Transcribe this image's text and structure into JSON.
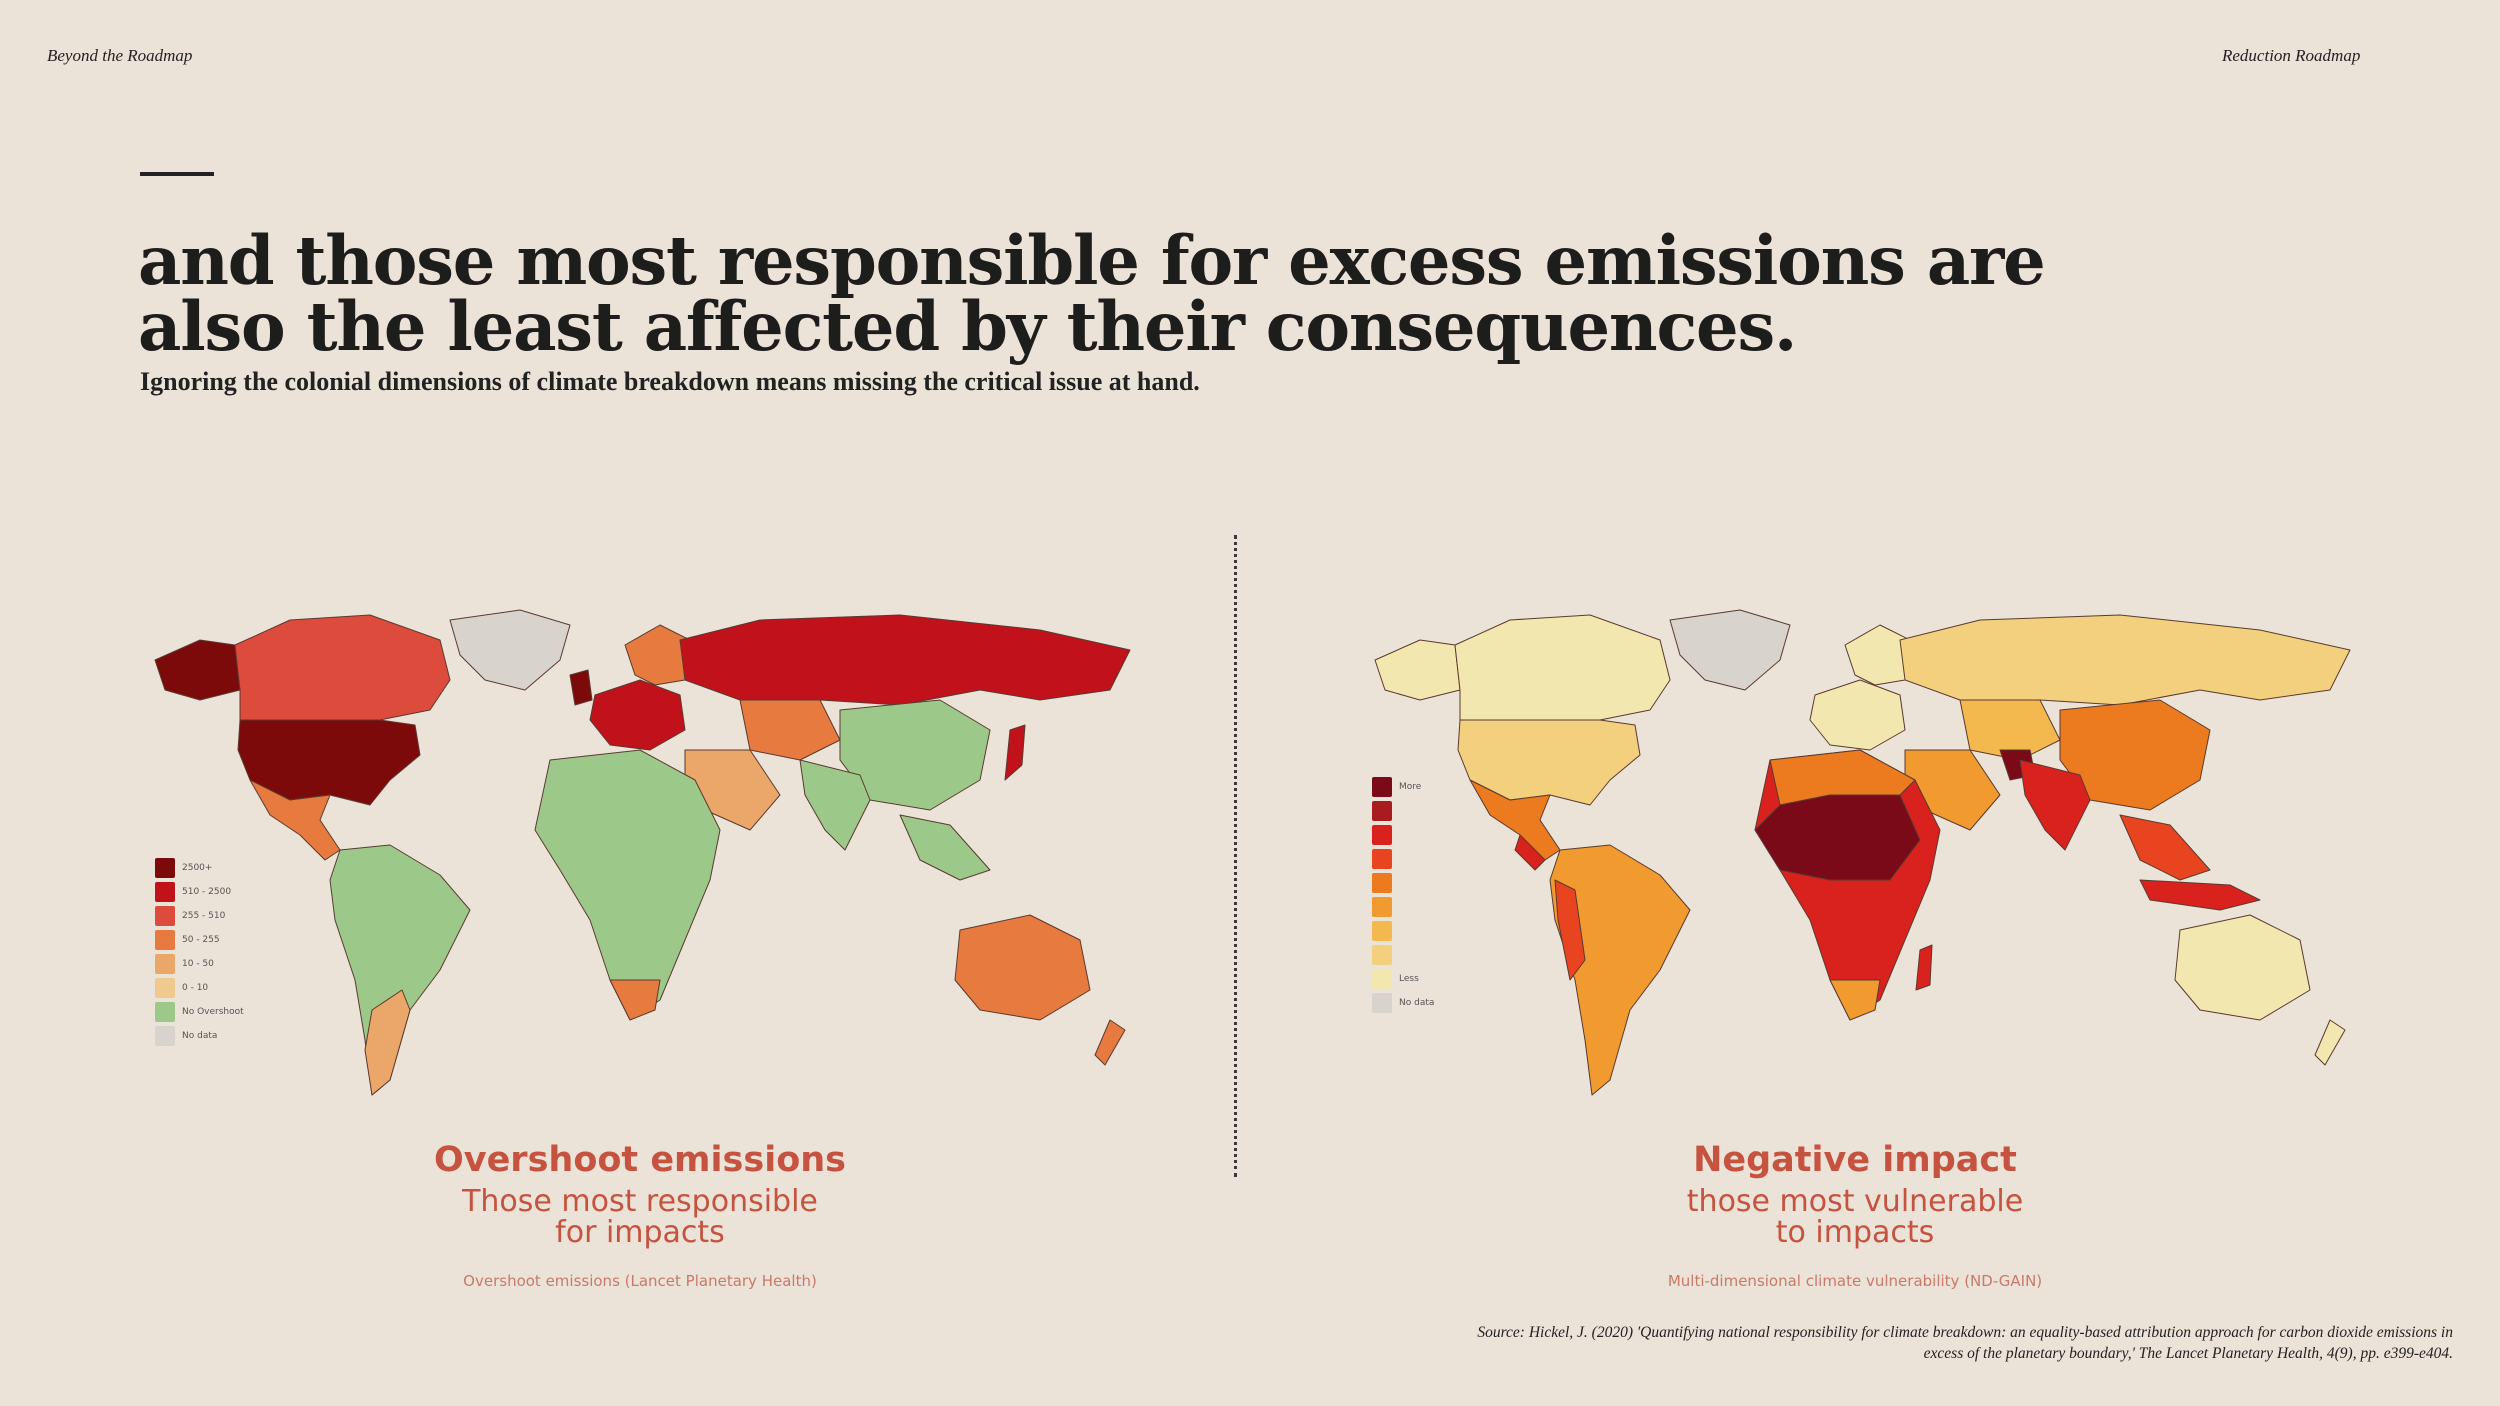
{
  "header": {
    "left": "Beyond the Roadmap",
    "right": "Reduction Roadmap"
  },
  "headline": "and those most responsible for excess emissions are also the least affected by their consequences.",
  "subheadline": "Ignoring the colonial dimensions of climate breakdown means missing the critical issue at hand.",
  "left_map": {
    "legend": [
      {
        "label": "2500+",
        "color": "#7d0a0a"
      },
      {
        "label": "510 - 2500",
        "color": "#c1121b"
      },
      {
        "label": "255 - 510",
        "color": "#dc4b3c"
      },
      {
        "label": "50 - 255",
        "color": "#e77a3e"
      },
      {
        "label": "10 - 50",
        "color": "#eba66a"
      },
      {
        "label": "0 - 10",
        "color": "#efc98e"
      },
      {
        "label": "No Overshoot",
        "color": "#9cc98a"
      },
      {
        "label": "No data",
        "color": "#d8d3cd"
      }
    ],
    "caption_title": "Overshoot emissions",
    "caption_subtitle": "Those most responsible\nfor impacts",
    "caption_source": "Overshoot emissions (Lancet Planetary Health)"
  },
  "right_map": {
    "legend": [
      {
        "label": "More",
        "color": "#7a0a18"
      },
      {
        "label": "",
        "color": "#a81b1f"
      },
      {
        "label": "",
        "color": "#d9221e"
      },
      {
        "label": "",
        "color": "#e8441f"
      },
      {
        "label": "",
        "color": "#ec7a1f"
      },
      {
        "label": "",
        "color": "#f09a30"
      },
      {
        "label": "",
        "color": "#f3b84e"
      },
      {
        "label": "",
        "color": "#f2d07d"
      },
      {
        "label": "Less",
        "color": "#f3e7b0"
      },
      {
        "label": "No data",
        "color": "#d8d3cd"
      }
    ],
    "caption_title": "Negative impact",
    "caption_subtitle": "those most vulnerable\nto impacts",
    "caption_source": "Multi-dimensional climate vulnerability (ND-GAIN)"
  },
  "source": "Source: Hickel, J. (2020) 'Quantifying national responsibility for climate breakdown: an equality-based attribution approach for carbon dioxide emissions in excess of the planetary boundary,' The Lancet Planetary Health, 4(9), pp. e399-e404.",
  "colors": {
    "background": "#ebe2d8",
    "caption_accent": "#c6533f",
    "text": "#1d1d1b"
  }
}
